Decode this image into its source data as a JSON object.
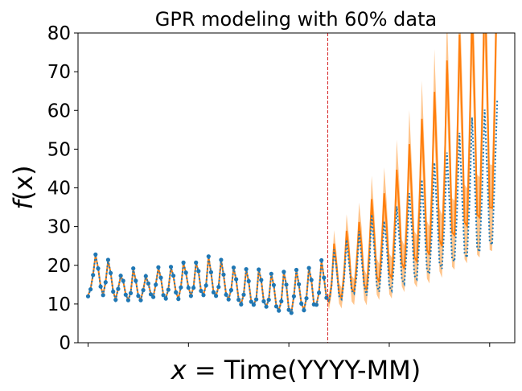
{
  "chart_data": {
    "type": "line",
    "title": "GPR modeling with 60% data",
    "xlabel": "x = Time(YYYY-MM)",
    "xlabel_var": "x",
    "xlabel_rest": " = Time(YYYY-MM)",
    "ylabel": "f(x)",
    "ylabel_var": "f",
    "ylabel_paren": "(x)",
    "ylim": [
      0,
      80
    ],
    "yticks": [
      0,
      10,
      20,
      30,
      40,
      50,
      60,
      70,
      80
    ],
    "xlim": [
      -4,
      170
    ],
    "x_tick_count": 5,
    "x_tick_positions": [
      0,
      40,
      80,
      120,
      160
    ],
    "x_tick_labels": [
      "",
      "",
      "",
      "",
      ""
    ],
    "train_fraction": 0.6,
    "split_index": 96,
    "colors": {
      "observed": "#1f77b4",
      "prediction": "#ff7f0e",
      "band": "#ffbb78",
      "split_line": "#d62728"
    },
    "series": [
      {
        "style": "dotted-with-markers-on-training",
        "values": [
          12.0,
          13.8,
          17.5,
          22.8,
          19.2,
          14.5,
          12.3,
          15.6,
          21.4,
          18.0,
          13.2,
          11.1,
          13.9,
          17.3,
          16.0,
          12.4,
          11.0,
          12.8,
          19.2,
          16.0,
          12.1,
          11.0,
          13.6,
          17.2,
          15.3,
          12.5,
          11.8,
          15.0,
          19.5,
          16.8,
          12.3,
          11.4,
          13.7,
          19.6,
          17.3,
          13.0,
          11.3,
          14.3,
          20.7,
          18.1,
          14.2,
          12.1,
          14.2,
          20.7,
          18.5,
          13.4,
          12.3,
          14.8,
          22.3,
          18.2,
          13.0,
          12.1,
          14.4,
          21.4,
          17.6,
          12.4,
          11.2,
          13.6,
          19.4,
          16.4,
          11.1,
          9.9,
          12.4,
          19.0,
          15.9,
          10.6,
          9.8,
          11.2,
          18.9,
          16.2,
          10.7,
          9.3,
          11.1,
          17.8,
          14.9,
          9.4,
          8.3,
          10.7,
          18.3,
          15.0,
          8.5,
          7.7,
          12.0,
          18.8,
          15.1,
          10.1,
          8.4,
          11.5,
          19.3,
          16.2,
          9.9,
          9.8,
          12.9,
          21.3,
          16.8,
          11.6,
          10.5,
          14.7,
          24.1,
          19.4,
          12.0,
          11.2,
          16.3,
          26.6,
          20.4,
          13.5,
          12.7,
          17.1,
          28.8,
          21.6,
          14.5,
          12.2,
          19.0,
          33.1,
          24.6,
          14.9,
          13.2,
          20.8,
          31.4,
          25.0,
          14.5,
          13.4,
          21.1,
          35.2,
          27.2,
          16.4,
          15.2,
          24.1,
          38.6,
          29.3,
          17.3,
          16.4,
          26.5,
          42.1,
          30.5,
          18.8,
          17.8,
          28.5,
          46.5,
          34.3,
          20.5,
          19.1,
          30.3,
          49.1,
          35.8,
          21.7,
          21.0,
          33.5,
          54.2,
          38.0,
          23.1,
          22.0,
          36.4,
          58.2,
          42.0,
          24.5,
          23.5,
          38.5,
          60.2,
          44.1,
          26.2,
          25.3,
          41.7,
          62.5
        ]
      },
      {
        "style": "solid-with-band",
        "values": [
          12.2,
          13.9,
          17.6,
          22.6,
          19.3,
          14.6,
          12.4,
          15.7,
          21.2,
          18.1,
          13.3,
          11.2,
          14.0,
          17.2,
          15.9,
          12.5,
          11.1,
          12.9,
          19.0,
          16.1,
          12.2,
          11.1,
          13.7,
          17.1,
          15.4,
          12.6,
          11.9,
          15.1,
          19.3,
          16.7,
          12.4,
          11.5,
          13.8,
          19.4,
          17.2,
          13.1,
          11.4,
          14.4,
          20.5,
          18.0,
          14.3,
          12.2,
          14.3,
          20.6,
          18.4,
          13.5,
          12.4,
          14.9,
          22.1,
          18.1,
          13.1,
          12.2,
          14.5,
          21.3,
          17.5,
          12.5,
          11.3,
          13.7,
          19.3,
          16.3,
          11.2,
          10.0,
          12.5,
          18.9,
          15.8,
          10.7,
          9.9,
          11.3,
          18.8,
          16.1,
          10.8,
          9.4,
          11.2,
          17.7,
          14.8,
          9.5,
          8.4,
          10.8,
          18.2,
          14.9,
          8.6,
          7.8,
          12.1,
          18.7,
          15.0,
          10.2,
          8.5,
          11.6,
          19.2,
          16.1,
          10.0,
          9.9,
          13.0,
          21.2,
          16.7,
          11.7,
          10.6,
          14.8,
          25.6,
          20.1,
          12.8,
          11.5,
          17.7,
          28.9,
          23.2,
          14.0,
          13.1,
          20.3,
          31.2,
          25.1,
          15.0,
          13.6,
          22.8,
          37.1,
          28.3,
          17.1,
          15.7,
          25.0,
          38.6,
          30.1,
          17.8,
          16.7,
          27.2,
          44.7,
          34.5,
          20.6,
          19.1,
          31.0,
          51.3,
          37.8,
          22.1,
          21.0,
          34.6,
          57.8,
          41.5,
          24.0,
          22.7,
          38.4,
          64.8,
          47.1,
          26.6,
          24.9,
          42.3,
          72.9,
          52.3,
          28.5,
          27.8,
          47.9,
          79.6,
          57.7,
          31.2,
          30.2,
          52.3,
          86.3,
          62.8,
          33.1,
          32.4,
          56.8,
          92.5,
          66.9,
          35.0,
          34.8,
          61.4,
          99.0
        ]
      }
    ]
  }
}
